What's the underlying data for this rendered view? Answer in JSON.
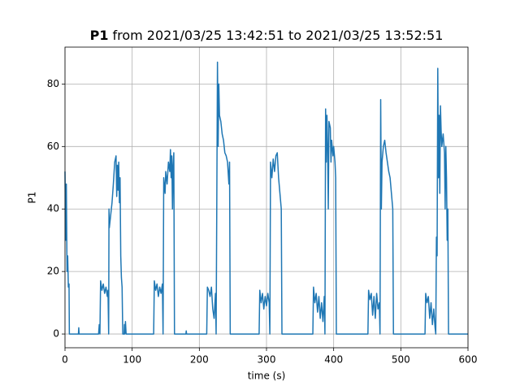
{
  "chart_data": {
    "type": "line",
    "title_prefix": "P1",
    "title": "from 2021/03/25 13:42:51 to 2021/03/25 13:52:51",
    "x_label": "time (s)",
    "y_label": "P1",
    "xlim": [
      0,
      600
    ],
    "xticks": [
      0,
      100,
      200,
      300,
      400,
      500,
      600
    ],
    "ylim": [
      -4.4,
      91.8
    ],
    "yticks": [
      0,
      20,
      40,
      60,
      80
    ],
    "grid": true,
    "series": [
      {
        "name": "P1",
        "color": "#1f77b4",
        "x": [
          0,
          1,
          2,
          3,
          4,
          5,
          6,
          6.5,
          20,
          20.5,
          21,
          50,
          51,
          52,
          53,
          55,
          57,
          59,
          61,
          63,
          64,
          65,
          65.5,
          66,
          68,
          70,
          72,
          74,
          76,
          77,
          78,
          79,
          80,
          81,
          82,
          83,
          84,
          85,
          86,
          88,
          88.5,
          89,
          90,
          91,
          132,
          133,
          135,
          137,
          139,
          141,
          143,
          145,
          146,
          147,
          149,
          150,
          152,
          154,
          156,
          157,
          158,
          159,
          160,
          161,
          162,
          163,
          180,
          180.5,
          181,
          211,
          212,
          214,
          216,
          218,
          220,
          222,
          224,
          225,
          226,
          227,
          228,
          229,
          230,
          232,
          234,
          236,
          238,
          240,
          242,
          244,
          245,
          246,
          289,
          290,
          292,
          294,
          296,
          298,
          300,
          302,
          304,
          305,
          306,
          308,
          310,
          312,
          314,
          316,
          318,
          320,
          322,
          323,
          369,
          370,
          372,
          374,
          376,
          378,
          380,
          382,
          384,
          386,
          387,
          388,
          389,
          390,
          391,
          392,
          393,
          395,
          396,
          397,
          399,
          400,
          402,
          403,
          404,
          451,
          452,
          454,
          456,
          458,
          460,
          462,
          464,
          466,
          468,
          469,
          470,
          471,
          472,
          474,
          476,
          478,
          480,
          482,
          484,
          486,
          488,
          489,
          536,
          537,
          539,
          541,
          543,
          545,
          547,
          549,
          551,
          552,
          553,
          554,
          555,
          556,
          557,
          558,
          559,
          560,
          561,
          563,
          565,
          566,
          567,
          568,
          569,
          570,
          571,
          600
        ],
        "values": [
          52,
          30,
          48,
          20,
          25,
          15,
          16,
          0,
          0,
          2,
          0,
          0,
          3,
          0,
          17,
          14,
          16,
          13,
          15,
          12,
          14,
          0,
          40,
          34,
          38,
          42,
          48,
          55,
          57,
          44,
          54,
          46,
          55,
          42,
          50,
          25,
          18,
          15,
          0,
          0,
          3,
          0,
          4,
          0,
          0,
          17,
          14,
          16,
          12,
          15,
          13,
          16,
          0,
          50,
          45,
          52,
          48,
          55,
          52,
          59,
          50,
          57,
          40,
          54,
          58,
          0,
          0,
          1,
          0,
          0,
          15,
          14,
          12,
          15,
          8,
          5,
          13,
          0,
          42,
          87,
          60,
          80,
          70,
          68,
          64,
          62,
          58,
          57,
          55,
          48,
          55,
          0,
          0,
          14,
          10,
          13,
          8,
          12,
          9,
          13,
          10,
          0,
          55,
          50,
          56,
          52,
          57,
          58,
          50,
          45,
          40,
          0,
          0,
          15,
          10,
          13,
          7,
          12,
          5,
          10,
          4,
          12,
          0,
          72,
          55,
          70,
          60,
          40,
          68,
          66,
          55,
          62,
          57,
          60,
          55,
          50,
          0,
          0,
          14,
          11,
          13,
          6,
          12,
          5,
          13,
          8,
          10,
          0,
          75,
          40,
          55,
          60,
          62,
          58,
          55,
          52,
          50,
          45,
          40,
          0,
          0,
          13,
          10,
          12,
          5,
          10,
          3,
          8,
          2,
          0,
          31,
          25,
          85,
          50,
          70,
          45,
          73,
          65,
          60,
          64,
          58,
          40,
          60,
          50,
          30,
          40,
          0,
          0
        ]
      }
    ]
  }
}
